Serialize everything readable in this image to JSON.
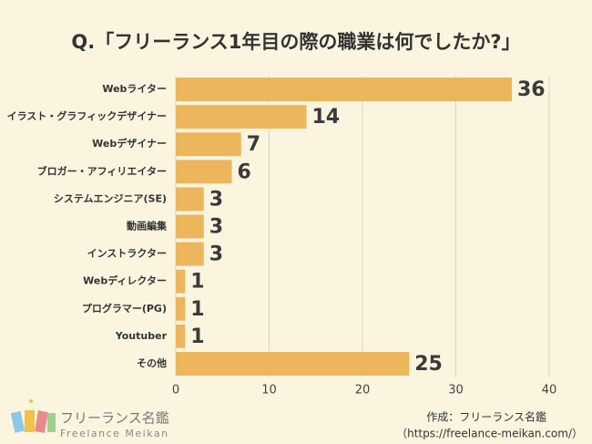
{
  "chart_data": {
    "type": "bar",
    "orientation": "horizontal",
    "title": "Q.「フリーランス1年目の際の職業は何でしたか?」",
    "categories": [
      "Webライター",
      "イラスト・グラフィックデザイナー",
      "Webデザイナー",
      "ブロガー・アフィリエイター",
      "システムエンジニア(SE)",
      "動画編集",
      "インストラクター",
      "Webディレクター",
      "プログラマー(PG)",
      "Youtuber",
      "その他"
    ],
    "values": [
      36,
      14,
      7,
      6,
      3,
      3,
      3,
      1,
      1,
      1,
      25
    ],
    "color": "#ebb65c",
    "xlim": [
      0,
      40
    ],
    "xticks": [
      0,
      10,
      20,
      30,
      40
    ],
    "grid": true
  },
  "footer": {
    "credit": "作成：フリーランス名鑑",
    "url": "（https://freelance-meikan.com/）"
  },
  "logo": {
    "name": "フリーランス名鑑",
    "sub": "Freelance Meikan"
  }
}
